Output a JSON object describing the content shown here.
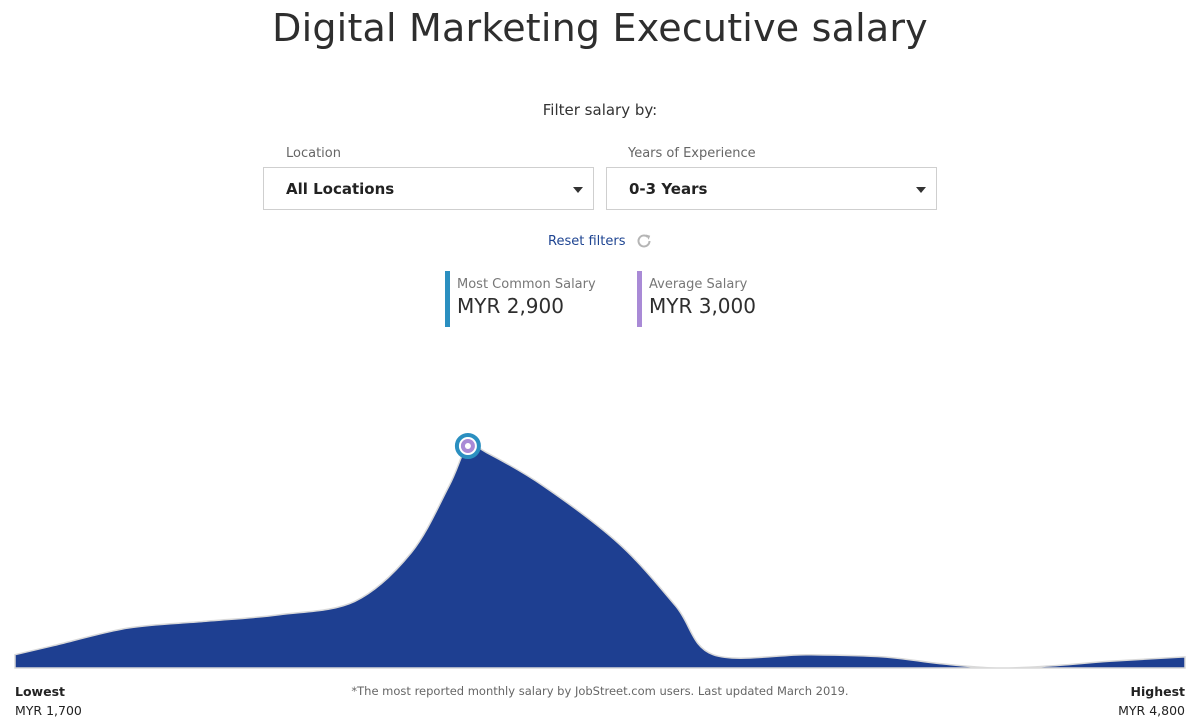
{
  "page": {
    "title": "Digital Marketing Executive salary"
  },
  "filters": {
    "caption": "Filter salary by:",
    "location": {
      "label": "Location",
      "value": "All Locations"
    },
    "experience": {
      "label": "Years of Experience",
      "value": "0-3 Years"
    },
    "reset_label": "Reset filters"
  },
  "stats": {
    "most_common": {
      "label": "Most Common Salary",
      "value": "MYR 2,900",
      "color": "#2b8fc0"
    },
    "average": {
      "label": "Average Salary",
      "value": "MYR 3,000",
      "color": "#a98ad6"
    }
  },
  "range": {
    "lowest_label": "Lowest",
    "lowest_value": "MYR 1,700",
    "highest_label": "Highest",
    "highest_value": "MYR 4,800"
  },
  "footnote": "*The most reported monthly salary by JobStreet.com users. Last updated March 2019.",
  "colors": {
    "area_fill": "#1e3f91",
    "marker_ring": "#2b8fc0",
    "marker_inner": "#a98ad6"
  },
  "chart_data": {
    "type": "area",
    "x": [
      1700,
      1800,
      2000,
      2200,
      2400,
      2600,
      2750,
      2850,
      2900,
      2950,
      3100,
      3300,
      3450,
      3550,
      3800,
      4000,
      4150,
      4300,
      4450,
      4600,
      4800
    ],
    "values": [
      0.06,
      0.1,
      0.18,
      0.21,
      0.24,
      0.3,
      0.52,
      0.82,
      1.0,
      0.97,
      0.82,
      0.56,
      0.28,
      0.06,
      0.06,
      0.05,
      0.02,
      0.0,
      0.01,
      0.03,
      0.05
    ],
    "xlim": [
      1700,
      4800
    ],
    "ylim": [
      0,
      1
    ],
    "peak_x": 2900,
    "grid": false
  }
}
